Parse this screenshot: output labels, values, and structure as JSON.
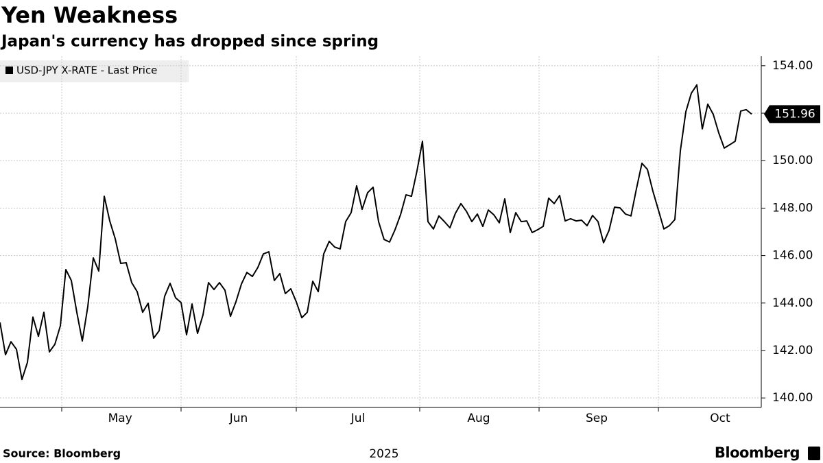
{
  "chart_data": {
    "type": "line",
    "title": "Yen Weakness",
    "subtitle": "Japan's currency has dropped since spring",
    "source": "Source: Bloomberg",
    "brand": "Bloomberg",
    "year_label": "2025",
    "series": [
      {
        "name": "USD-JPY X-RATE - Last Price",
        "color": "#000000",
        "axis": "y2",
        "values": [
          143.18,
          141.82,
          142.37,
          142.05,
          140.78,
          141.5,
          143.41,
          142.6,
          143.61,
          141.94,
          142.26,
          143.04,
          145.41,
          144.95,
          143.61,
          142.4,
          143.85,
          145.9,
          145.35,
          148.5,
          147.46,
          146.71,
          145.67,
          145.7,
          144.86,
          144.48,
          143.61,
          143.99,
          142.52,
          142.83,
          144.28,
          144.83,
          144.22,
          144.02,
          142.66,
          143.96,
          142.72,
          143.5,
          144.86,
          144.57,
          144.86,
          144.54,
          143.44,
          144.05,
          144.8,
          145.29,
          145.12,
          145.5,
          146.07,
          146.16,
          144.95,
          145.24,
          144.4,
          144.6,
          144.05,
          143.38,
          143.61,
          144.92,
          144.48,
          146.07,
          146.6,
          146.36,
          146.28,
          147.43,
          147.81,
          148.94,
          147.95,
          148.65,
          148.88,
          147.43,
          146.68,
          146.57,
          147.09,
          147.72,
          148.56,
          148.5,
          149.57,
          150.82,
          147.43,
          147.12,
          147.67,
          147.43,
          147.17,
          147.78,
          148.19,
          147.87,
          147.43,
          147.75,
          147.23,
          147.92,
          147.72,
          147.38,
          148.39,
          146.97,
          147.81,
          147.43,
          147.46,
          146.97,
          147.09,
          147.23,
          148.42,
          148.19,
          148.53,
          147.46,
          147.55,
          147.46,
          147.49,
          147.26,
          147.69,
          147.43,
          146.54,
          147.06,
          148.04,
          148.01,
          147.75,
          147.67,
          148.82,
          149.89,
          149.63,
          148.71,
          147.92,
          147.12,
          147.26,
          147.52,
          150.41,
          152.06,
          152.84,
          153.19,
          151.34,
          152.38,
          151.95,
          151.17,
          150.53,
          150.67,
          150.82,
          152.09,
          152.15,
          151.96
        ]
      }
    ],
    "xlim": [
      0,
      138.75
    ],
    "x_labels": [
      {
        "value": 21.9,
        "label": "May"
      },
      {
        "value": 43.5,
        "label": "Jun"
      },
      {
        "value": 65.25,
        "label": "Jul"
      },
      {
        "value": 87.25,
        "label": "Aug"
      },
      {
        "value": 108.75,
        "label": "Sep"
      },
      {
        "value": 131.25,
        "label": "Oct"
      }
    ],
    "xgrid": [
      11.25,
      33,
      54,
      76.5,
      98.25,
      120
    ],
    "y2lim": [
      139.6,
      154.4
    ],
    "y2ticks": [
      {
        "value": 140,
        "label": "140.00"
      },
      {
        "value": 142,
        "label": "142.00"
      },
      {
        "value": 144,
        "label": "144.00"
      },
      {
        "value": 146,
        "label": "146.00"
      },
      {
        "value": 148,
        "label": "148.00"
      },
      {
        "value": 150,
        "label": "150.00"
      },
      {
        "value": 152,
        "label": "152.00"
      },
      {
        "value": 154,
        "label": "154.00"
      }
    ],
    "grid": true
  }
}
